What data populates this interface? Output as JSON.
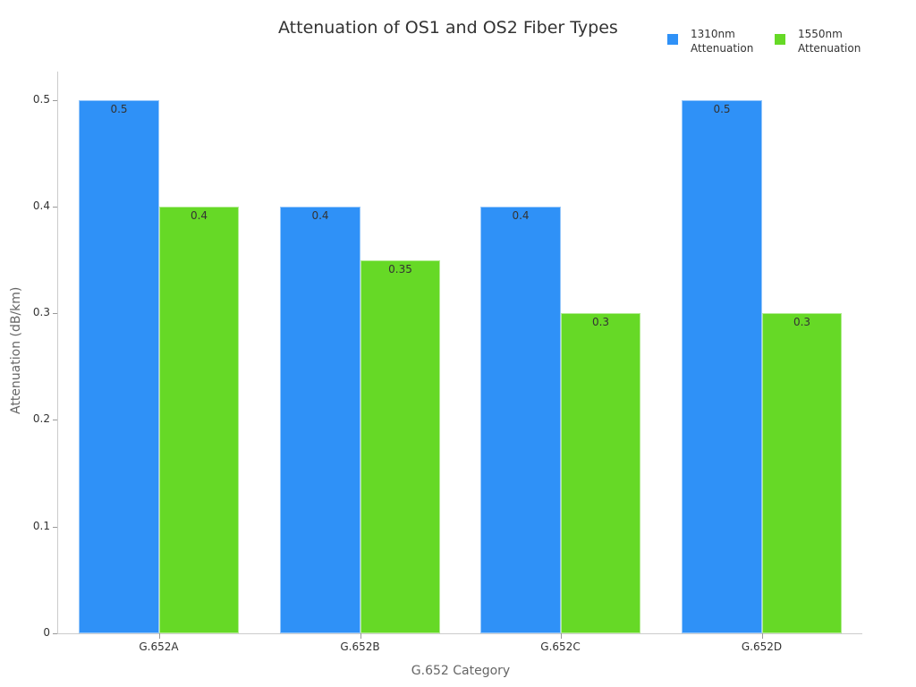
{
  "chart_data": {
    "type": "bar",
    "title": "Attenuation of OS1 and OS2 Fiber Types",
    "xlabel": "G.652 Category",
    "ylabel": "Attenuation (dB/km)",
    "categories": [
      "G.652A",
      "G.652B",
      "G.652C",
      "G.652D"
    ],
    "series": [
      {
        "name": "1310nm Attenuation",
        "color": "#2f91f7",
        "values": [
          0.5,
          0.4,
          0.4,
          0.5
        ],
        "labels": [
          "0.5",
          "0.4",
          "0.4",
          "0.5"
        ]
      },
      {
        "name": "1550nm Attenuation",
        "color": "#66d926",
        "values": [
          0.4,
          0.35,
          0.3,
          0.3
        ],
        "labels": [
          "0.4",
          "0.35",
          "0.3",
          "0.3"
        ]
      }
    ],
    "ylim": [
      0,
      0.525
    ],
    "yticks": [
      "0",
      "0.1",
      "0.2",
      "0.3",
      "0.4",
      "0.5"
    ],
    "grid": false,
    "legend_position": "top-right"
  },
  "legend": {
    "items": [
      {
        "line1": "1310nm",
        "line2": "Attenuation",
        "color": "#2f91f7"
      },
      {
        "line1": "1550nm",
        "line2": "Attenuation",
        "color": "#66d926"
      }
    ]
  }
}
